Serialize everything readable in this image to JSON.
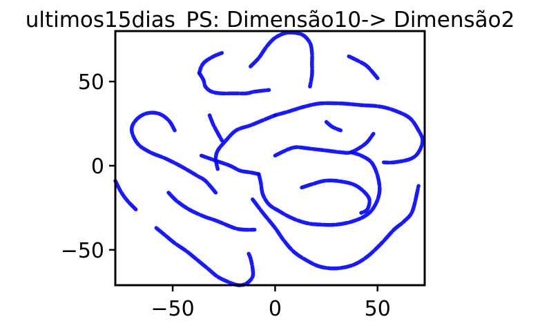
{
  "chart_data": {
    "type": "scatter",
    "title": "ultimos15dias_PS: Dimensão10-> Dimensão2",
    "xlabel": "",
    "ylabel": "",
    "xlim": [
      -78,
      73
    ],
    "ylim": [
      -71,
      80
    ],
    "xticks": [
      -50,
      0,
      50
    ],
    "xtick_labels": [
      "−50",
      "0",
      "50"
    ],
    "yticks": [
      -50,
      0,
      50
    ],
    "ytick_labels": [
      "−50",
      "0",
      "50"
    ],
    "grid": false,
    "marker_color": "#0000ff",
    "series": [
      {
        "points": [
          {
            "curve": 1,
            "xy": [
              [
                -37,
                55
              ],
              [
                -35,
                51
              ],
              [
                -34,
                47
              ],
              [
                -31,
                44
              ],
              [
                -26,
                43
              ],
              [
                -20,
                43
              ],
              [
                -14,
                43
              ],
              [
                -10,
                44
              ],
              [
                -3,
                45
              ]
            ]
          },
          {
            "curve": 2,
            "xy": [
              [
                -26,
                67
              ],
              [
                -30,
                65
              ],
              [
                -34,
                62
              ],
              [
                -36,
                59
              ],
              [
                -37,
                55
              ]
            ]
          },
          {
            "curve": 3,
            "xy": [
              [
                -12,
                59
              ],
              [
                -8,
                64
              ],
              [
                -4,
                71
              ],
              [
                0,
                76
              ],
              [
                6,
                79
              ],
              [
                13,
                78
              ],
              [
                17,
                73
              ],
              [
                18,
                67
              ],
              [
                18,
                61
              ],
              [
                18,
                54
              ],
              [
                17,
                47
              ]
            ]
          },
          {
            "curve": 4,
            "xy": [
              [
                36,
                65
              ],
              [
                41,
                62
              ],
              [
                45,
                59
              ],
              [
                50,
                52
              ]
            ]
          },
          {
            "curve": 5,
            "xy": [
              [
                -32,
                30
              ],
              [
                -30,
                24
              ],
              [
                -26,
                15
              ]
            ]
          },
          {
            "curve": 6,
            "xy": [
              [
                -49,
                21
              ],
              [
                -52,
                27
              ],
              [
                -57,
                31
              ],
              [
                -63,
                31
              ],
              [
                -68,
                27
              ],
              [
                -70,
                21
              ],
              [
                -67,
                13
              ],
              [
                -61,
                8
              ],
              [
                -53,
                4
              ],
              [
                -45,
                -1
              ],
              [
                -38,
                -6
              ],
              [
                -34,
                -9
              ],
              [
                -29,
                -16
              ]
            ]
          },
          {
            "curve": 7,
            "xy": [
              [
                -36,
                6
              ],
              [
                -29,
                3
              ],
              [
                -22,
                0
              ],
              [
                -17,
                -3
              ],
              [
                -12,
                -4
              ],
              [
                -8,
                -5
              ]
            ]
          },
          {
            "curve": 8,
            "xy": [
              [
                25,
                26
              ],
              [
                28,
                23
              ],
              [
                32,
                21
              ]
            ]
          },
          {
            "curve": 9,
            "xy": [
              [
                0,
                6
              ],
              [
                5,
                9
              ],
              [
                10,
                11
              ],
              [
                18,
                10
              ],
              [
                25,
                9
              ],
              [
                32,
                8
              ],
              [
                37,
                8
              ],
              [
                44,
                13
              ],
              [
                48,
                19
              ]
            ]
          },
          {
            "curve": 10,
            "xy": [
              [
                0,
                30
              ],
              [
                -6,
                27
              ],
              [
                -12,
                24
              ],
              [
                -19,
                21
              ],
              [
                -24,
                15
              ],
              [
                -28,
                9
              ],
              [
                -29,
                4
              ],
              [
                -28,
                -2
              ]
            ]
          },
          {
            "curve": 11,
            "xy": [
              [
                0,
                30
              ],
              [
                6,
                32
              ],
              [
                14,
                35
              ],
              [
                22,
                37
              ],
              [
                32,
                37
              ],
              [
                42,
                36
              ],
              [
                52,
                35
              ],
              [
                60,
                32
              ],
              [
                66,
                28
              ],
              [
                70,
                21
              ],
              [
                72,
                15
              ],
              [
                70,
                8
              ],
              [
                66,
                4
              ],
              [
                58,
                2
              ],
              [
                53,
                2
              ]
            ]
          },
          {
            "curve": 12,
            "xy": [
              [
                13,
                -13
              ],
              [
                18,
                -11
              ],
              [
                24,
                -9
              ],
              [
                30,
                -9
              ],
              [
                38,
                -11
              ],
              [
                43,
                -15
              ],
              [
                46,
                -20
              ],
              [
                45,
                -26
              ],
              [
                42,
                -28
              ]
            ]
          },
          {
            "curve": 13,
            "xy": [
              [
                -8,
                -5
              ],
              [
                -7,
                -10
              ],
              [
                -6,
                -17
              ],
              [
                -3,
                -23
              ],
              [
                2,
                -27
              ],
              [
                8,
                -31
              ],
              [
                15,
                -34
              ],
              [
                22,
                -35
              ],
              [
                30,
                -35
              ],
              [
                38,
                -33
              ],
              [
                45,
                -29
              ],
              [
                49,
                -23
              ],
              [
                51,
                -15
              ],
              [
                50,
                -6
              ],
              [
                47,
                2
              ],
              [
                42,
                6
              ],
              [
                37,
                8
              ]
            ]
          },
          {
            "curve": 14,
            "xy": [
              [
                -78,
                -9
              ],
              [
                -75,
                -16
              ],
              [
                -72,
                -21
              ],
              [
                -68,
                -26
              ]
            ]
          },
          {
            "curve": 15,
            "xy": [
              [
                -52,
                -16
              ],
              [
                -48,
                -21
              ],
              [
                -42,
                -26
              ],
              [
                -35,
                -30
              ],
              [
                -28,
                -33
              ],
              [
                -20,
                -37
              ],
              [
                -15,
                -38
              ],
              [
                -10,
                -38
              ]
            ]
          },
          {
            "curve": 16,
            "xy": [
              [
                -58,
                -37
              ],
              [
                -54,
                -41
              ],
              [
                -49,
                -46
              ],
              [
                -43,
                -51
              ],
              [
                -38,
                -56
              ],
              [
                -33,
                -61
              ],
              [
                -28,
                -66
              ],
              [
                -23,
                -69
              ],
              [
                -18,
                -71
              ],
              [
                -14,
                -70
              ],
              [
                -11,
                -66
              ],
              [
                -11,
                -61
              ],
              [
                -12,
                -55
              ],
              [
                -13,
                -52
              ]
            ]
          },
          {
            "curve": 17,
            "xy": [
              [
                -11,
                -20
              ],
              [
                -6,
                -28
              ],
              [
                0,
                -37
              ],
              [
                4,
                -44
              ],
              [
                9,
                -51
              ],
              [
                15,
                -56
              ],
              [
                22,
                -60
              ],
              [
                30,
                -61
              ],
              [
                38,
                -59
              ],
              [
                45,
                -54
              ],
              [
                52,
                -46
              ],
              [
                58,
                -38
              ],
              [
                63,
                -33
              ],
              [
                67,
                -27
              ],
              [
                70,
                -12
              ]
            ]
          }
        ]
      }
    ]
  }
}
